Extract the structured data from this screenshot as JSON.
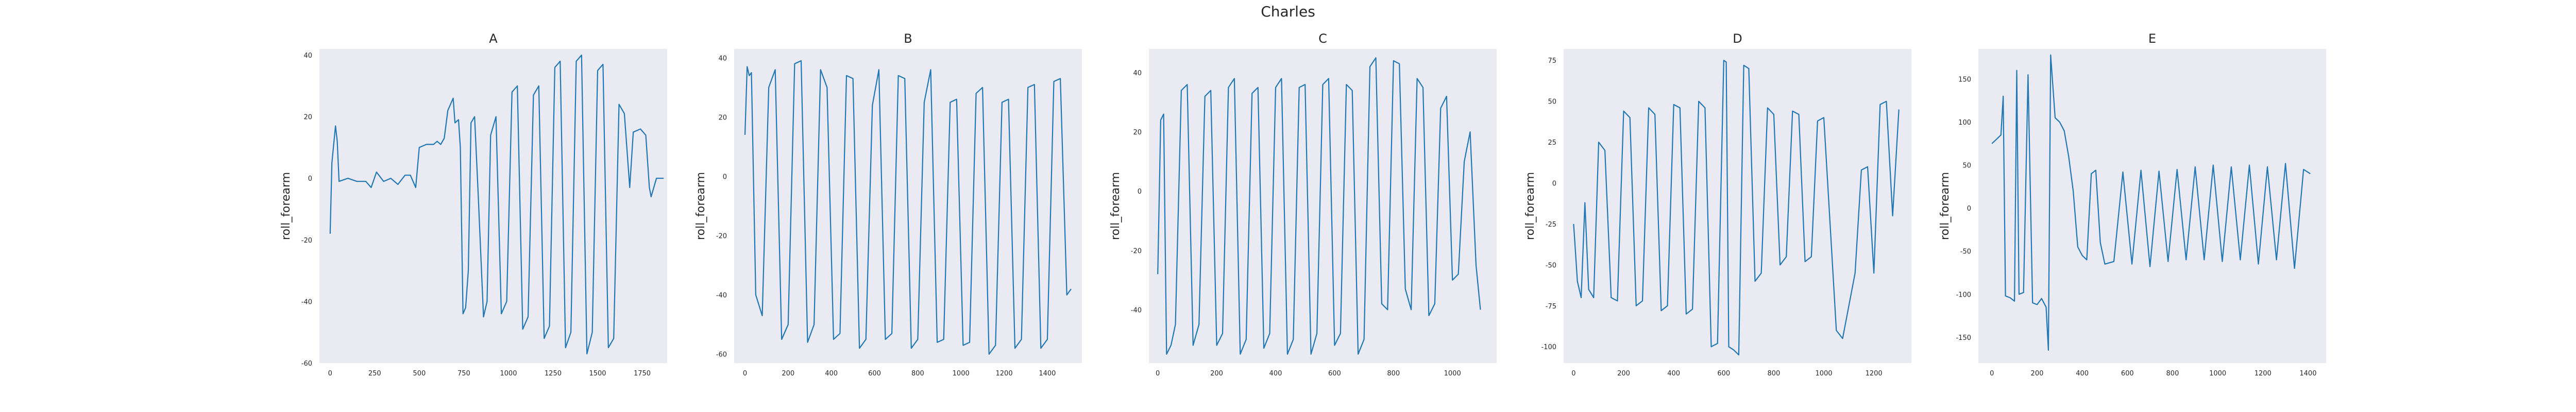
{
  "figure": {
    "suptitle": "Charles"
  },
  "chart_data": [
    {
      "type": "line",
      "title": "A",
      "ylabel": "roll_forearm",
      "xlim": [
        -60,
        1890
      ],
      "ylim": [
        -60,
        42
      ],
      "xticks": [
        0,
        250,
        500,
        750,
        1000,
        1250,
        1500,
        1750
      ],
      "yticks": [
        -60,
        -40,
        -20,
        0,
        20,
        40
      ],
      "series": [
        {
          "x": [
            0,
            10,
            30,
            40,
            50,
            100,
            150,
            200,
            230,
            260,
            300,
            340,
            380,
            420,
            450,
            480,
            500,
            540,
            560,
            580,
            600,
            620,
            640,
            660,
            690,
            700,
            720,
            730,
            745,
            760,
            775,
            790,
            810,
            830,
            860,
            880,
            900,
            930,
            960,
            990,
            1020,
            1050,
            1080,
            1110,
            1140,
            1170,
            1200,
            1230,
            1260,
            1290,
            1320,
            1350,
            1380,
            1410,
            1440,
            1470,
            1500,
            1530,
            1560,
            1590,
            1620,
            1650,
            1680,
            1700,
            1740,
            1770,
            1790,
            1800,
            1830,
            1870
          ],
          "y": [
            -18,
            5,
            17,
            12,
            -1,
            0,
            -1,
            -1,
            -3,
            2,
            -1,
            0,
            -2,
            1,
            1,
            -3,
            10,
            11,
            11,
            11,
            12,
            11,
            13,
            22,
            26,
            18,
            19,
            10,
            -44,
            -42,
            -30,
            18,
            20,
            -5,
            -45,
            -40,
            14,
            20,
            -44,
            -40,
            28,
            30,
            -49,
            -45,
            27,
            30,
            -52,
            -48,
            36,
            38,
            -55,
            -50,
            38,
            40,
            -57,
            -50,
            35,
            37,
            -55,
            -52,
            24,
            21,
            -3,
            15,
            16,
            14,
            -3,
            -6,
            0,
            0
          ]
        }
      ]
    },
    {
      "type": "line",
      "title": "B",
      "ylabel": "roll_forearm",
      "xlim": [
        -50,
        1560
      ],
      "ylim": [
        -63,
        43
      ],
      "xticks": [
        0,
        200,
        400,
        600,
        800,
        1000,
        1200,
        1400
      ],
      "yticks": [
        -60,
        -40,
        -20,
        0,
        20,
        40
      ],
      "series": [
        {
          "x": [
            0,
            10,
            20,
            30,
            50,
            80,
            110,
            140,
            170,
            200,
            230,
            260,
            290,
            320,
            350,
            380,
            410,
            440,
            470,
            500,
            530,
            560,
            590,
            620,
            650,
            680,
            710,
            740,
            770,
            800,
            830,
            860,
            890,
            920,
            950,
            980,
            1010,
            1040,
            1070,
            1100,
            1130,
            1160,
            1190,
            1220,
            1250,
            1280,
            1310,
            1340,
            1370,
            1400,
            1430,
            1460,
            1490,
            1510
          ],
          "y": [
            14,
            37,
            34,
            35,
            -40,
            -47,
            30,
            36,
            -55,
            -50,
            38,
            39,
            -56,
            -50,
            36,
            30,
            -55,
            -53,
            34,
            33,
            -58,
            -55,
            24,
            36,
            -55,
            -53,
            34,
            33,
            -58,
            -55,
            25,
            36,
            -56,
            -55,
            25,
            26,
            -57,
            -56,
            28,
            30,
            -60,
            -57,
            25,
            26,
            -58,
            -55,
            30,
            31,
            -58,
            -55,
            32,
            33,
            -40,
            -38
          ]
        }
      ]
    },
    {
      "type": "line",
      "title": "C",
      "ylabel": "roll_forearm",
      "xlim": [
        -30,
        1150
      ],
      "ylim": [
        -58,
        48
      ],
      "xticks": [
        0,
        200,
        400,
        600,
        800,
        1000
      ],
      "yticks": [
        -40,
        -20,
        0,
        20,
        40
      ],
      "series": [
        {
          "x": [
            0,
            10,
            20,
            30,
            45,
            60,
            80,
            100,
            120,
            140,
            160,
            180,
            200,
            220,
            240,
            260,
            280,
            300,
            320,
            340,
            360,
            380,
            400,
            420,
            440,
            460,
            480,
            500,
            520,
            540,
            560,
            580,
            600,
            620,
            640,
            660,
            680,
            700,
            720,
            740,
            760,
            780,
            800,
            820,
            840,
            860,
            880,
            900,
            920,
            940,
            960,
            980,
            1000,
            1020,
            1040,
            1060,
            1080,
            1095
          ],
          "y": [
            -28,
            24,
            26,
            -55,
            -52,
            -45,
            34,
            36,
            -52,
            -45,
            32,
            34,
            -52,
            -48,
            35,
            38,
            -55,
            -50,
            33,
            35,
            -53,
            -48,
            35,
            38,
            -55,
            -50,
            35,
            36,
            -55,
            -48,
            36,
            38,
            -52,
            -48,
            36,
            34,
            -55,
            -50,
            42,
            45,
            -38,
            -40,
            44,
            43,
            -33,
            -40,
            38,
            35,
            -42,
            -38,
            28,
            32,
            -30,
            -28,
            10,
            20,
            -25,
            -40
          ]
        }
      ]
    },
    {
      "type": "line",
      "title": "D",
      "ylabel": "roll_forearm",
      "xlim": [
        -40,
        1350
      ],
      "ylim": [
        -110,
        82
      ],
      "xticks": [
        0,
        200,
        400,
        600,
        800,
        1000,
        1200
      ],
      "yticks": [
        -100,
        -75,
        -50,
        -25,
        0,
        25,
        50,
        75
      ],
      "series": [
        {
          "x": [
            0,
            15,
            30,
            45,
            60,
            80,
            100,
            125,
            150,
            175,
            200,
            225,
            250,
            275,
            300,
            325,
            350,
            375,
            400,
            425,
            450,
            475,
            500,
            525,
            550,
            575,
            600,
            610,
            620,
            640,
            660,
            680,
            700,
            725,
            750,
            775,
            800,
            825,
            850,
            875,
            900,
            925,
            950,
            975,
            1000,
            1025,
            1050,
            1075,
            1100,
            1125,
            1150,
            1175,
            1200,
            1225,
            1250,
            1275,
            1300
          ],
          "y": [
            -25,
            -60,
            -70,
            -12,
            -65,
            -70,
            25,
            20,
            -70,
            -72,
            44,
            40,
            -75,
            -72,
            46,
            42,
            -78,
            -75,
            48,
            46,
            -80,
            -77,
            50,
            46,
            -100,
            -98,
            75,
            74,
            -100,
            -102,
            -105,
            72,
            70,
            -60,
            -55,
            46,
            42,
            -50,
            -45,
            44,
            42,
            -48,
            -45,
            38,
            40,
            -25,
            -90,
            -95,
            -75,
            -55,
            8,
            10,
            -55,
            48,
            50,
            -20,
            45
          ]
        }
      ]
    },
    {
      "type": "line",
      "title": "E",
      "ylabel": "roll_forearm",
      "xlim": [
        -60,
        1480
      ],
      "ylim": [
        -180,
        185
      ],
      "xticks": [
        0,
        200,
        400,
        600,
        800,
        1000,
        1200,
        1400
      ],
      "yticks": [
        -150,
        -100,
        -50,
        0,
        50,
        100,
        150
      ],
      "series": [
        {
          "x": [
            0,
            20,
            40,
            50,
            60,
            80,
            100,
            110,
            120,
            140,
            160,
            180,
            200,
            220,
            240,
            250,
            260,
            280,
            300,
            320,
            340,
            360,
            380,
            400,
            420,
            440,
            460,
            480,
            500,
            540,
            580,
            620,
            660,
            700,
            740,
            780,
            820,
            860,
            900,
            940,
            980,
            1020,
            1060,
            1100,
            1140,
            1180,
            1220,
            1260,
            1300,
            1340,
            1380,
            1410
          ],
          "y": [
            75,
            80,
            85,
            130,
            -102,
            -104,
            -108,
            160,
            -100,
            -98,
            155,
            -110,
            -112,
            -105,
            -115,
            -165,
            178,
            105,
            100,
            90,
            60,
            20,
            -45,
            -55,
            -60,
            40,
            44,
            -40,
            -65,
            -62,
            42,
            -65,
            44,
            -68,
            43,
            -62,
            45,
            -60,
            48,
            -60,
            50,
            -62,
            48,
            -60,
            50,
            -65,
            48,
            -60,
            52,
            -70,
            45,
            40
          ]
        }
      ]
    }
  ]
}
